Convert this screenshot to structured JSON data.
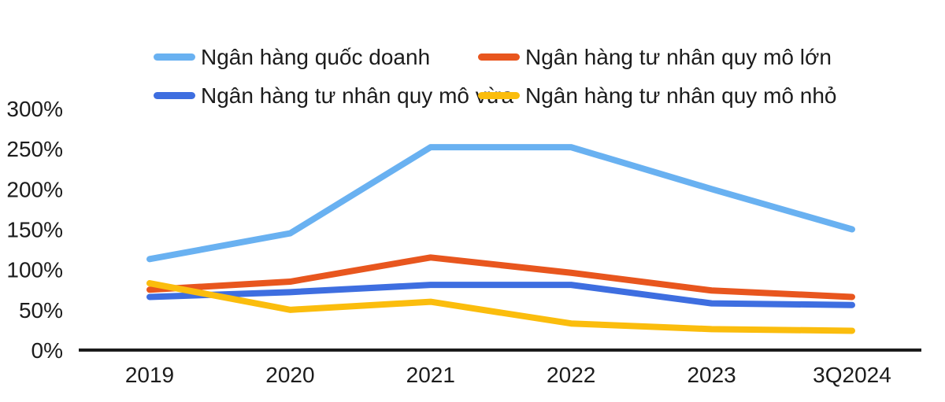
{
  "chart": {
    "background_color": "#ffffff",
    "text_color": "#1c1c1c",
    "axis_color": "#1b1b1b"
  },
  "chart_data": {
    "type": "line",
    "title": "",
    "xlabel": "",
    "ylabel": "",
    "categories": [
      "2019",
      "2020",
      "2021",
      "2022",
      "2023",
      "3Q2024"
    ],
    "series": [
      {
        "name": "Ngân hàng quốc doanh",
        "color": "#69B1F1",
        "values": [
          113,
          145,
          252,
          252,
          200,
          150
        ]
      },
      {
        "name": "Ngân hàng tư nhân quy mô lớn",
        "color": "#E8561E",
        "values": [
          75,
          85,
          115,
          96,
          74,
          66
        ]
      },
      {
        "name": "Ngân hàng tư nhân quy mô vừa",
        "color": "#3E6EE0",
        "values": [
          66,
          72,
          81,
          81,
          58,
          56
        ]
      },
      {
        "name": "Ngân hàng tư nhân quy mô nhỏ",
        "color": "#FBBD0D",
        "values": [
          83,
          50,
          60,
          33,
          26,
          24
        ]
      }
    ],
    "ylim": [
      0,
      300
    ],
    "yticks": [
      0,
      50,
      100,
      150,
      200,
      250,
      300
    ],
    "ytick_suffix": "%",
    "grid": false,
    "legend_position": "top",
    "legend_columns": 2
  }
}
